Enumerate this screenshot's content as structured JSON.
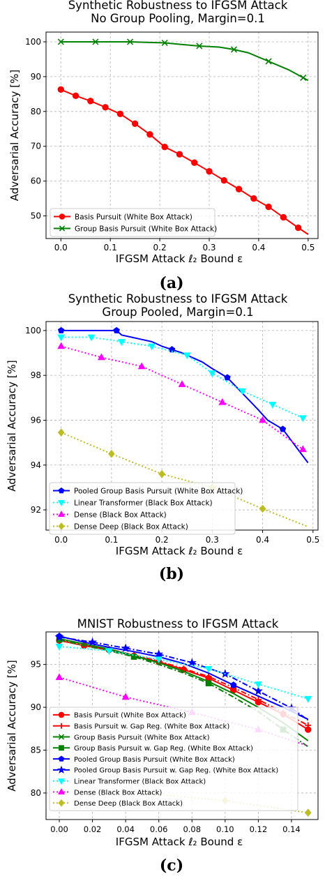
{
  "panels": [
    {
      "caption": "(a)"
    },
    {
      "caption": "(b)"
    },
    {
      "caption": "(c)"
    }
  ],
  "chart_data": [
    {
      "type": "line",
      "title": "Synthetic Robustness to IFGSM Attack",
      "subtitle": "No Group Pooling, Margin=0.1",
      "xlabel": "IFGSM Attack ℓ₂ Bound ε",
      "ylabel": "Adversarial Accuracy [%]",
      "xlim": [
        -0.03,
        0.52
      ],
      "ylim": [
        43.5,
        102.8
      ],
      "xticks": [
        0.0,
        0.1,
        0.2,
        0.3,
        0.4,
        0.5
      ],
      "xticklabels": [
        "0.0",
        "0.1",
        "0.2",
        "0.3",
        "0.4",
        "0.5"
      ],
      "yticks": [
        50,
        60,
        70,
        80,
        90,
        100
      ],
      "yticklabels": [
        "50",
        "60",
        "70",
        "80",
        "90",
        "100"
      ],
      "grid": true,
      "legend_position": "lower-left",
      "series": [
        {
          "name": "Basis Pursuit (White Box Attack)",
          "color": "#ff0000",
          "marker": "circle",
          "linestyle": "solid",
          "x": [
            0.0,
            0.03,
            0.06,
            0.09,
            0.12,
            0.15,
            0.18,
            0.21,
            0.24,
            0.27,
            0.3,
            0.33,
            0.36,
            0.39,
            0.42,
            0.45,
            0.48,
            0.5
          ],
          "y": [
            86.3,
            84.5,
            83.0,
            81.2,
            79.3,
            76.5,
            73.4,
            69.8,
            67.7,
            65.3,
            62.8,
            60.2,
            57.7,
            55.0,
            52.6,
            49.6,
            46.6,
            44.7
          ],
          "markers": [
            true,
            true,
            true,
            true,
            true,
            true,
            true,
            true,
            true,
            true,
            true,
            true,
            true,
            true,
            true,
            true,
            true,
            false
          ]
        },
        {
          "name": "Group Basis Pursuit (White Box Attack)",
          "color": "#008000",
          "marker": "x",
          "linestyle": "solid",
          "x": [
            0.0,
            0.07,
            0.14,
            0.21,
            0.24,
            0.28,
            0.32,
            0.35,
            0.38,
            0.42,
            0.46,
            0.49,
            0.5
          ],
          "y": [
            100.0,
            100.0,
            100.0,
            99.7,
            99.3,
            98.8,
            98.5,
            97.8,
            96.8,
            94.4,
            92.0,
            89.7,
            88.9
          ],
          "markers": [
            true,
            true,
            true,
            true,
            false,
            true,
            false,
            true,
            false,
            true,
            false,
            true,
            false
          ]
        }
      ]
    },
    {
      "type": "line",
      "title": "Synthetic Robustness to IFGSM Attack",
      "subtitle": "Group Pooled, Margin=0.1",
      "xlabel": "IFGSM Attack ℓ₂ Bound ε",
      "ylabel": "Adversarial Accuracy [%]",
      "xlim": [
        -0.03,
        0.51
      ],
      "ylim": [
        91.1,
        100.4
      ],
      "xticks": [
        0.0,
        0.1,
        0.2,
        0.3,
        0.4,
        0.5
      ],
      "xticklabels": [
        "0.0",
        "0.1",
        "0.2",
        "0.3",
        "0.4",
        "0.5"
      ],
      "yticks": [
        92,
        94,
        96,
        98,
        100
      ],
      "yticklabels": [
        "92",
        "94",
        "96",
        "98",
        "100"
      ],
      "grid": true,
      "legend_position": "lower-left",
      "series": [
        {
          "name": "Pooled Group Basis Pursuit (White Box Attack)",
          "color": "#0000ff",
          "marker": "pentagon",
          "linestyle": "solid",
          "x": [
            0.0,
            0.11,
            0.12,
            0.14,
            0.16,
            0.18,
            0.2,
            0.22,
            0.24,
            0.26,
            0.28,
            0.3,
            0.33,
            0.36,
            0.39,
            0.41,
            0.44,
            0.49
          ],
          "y": [
            100.0,
            100.0,
            99.8,
            99.7,
            99.6,
            99.5,
            99.3,
            99.15,
            99.0,
            98.8,
            98.6,
            98.3,
            97.9,
            97.2,
            96.5,
            96.0,
            95.6,
            94.1
          ],
          "markers": [
            true,
            true,
            false,
            false,
            false,
            false,
            false,
            true,
            false,
            false,
            false,
            false,
            true,
            false,
            false,
            false,
            true,
            false
          ]
        },
        {
          "name": "Linear Transformer (Black Box Attack)",
          "color": "#00ffff",
          "marker": "triangle-down",
          "linestyle": "dotted",
          "x": [
            0.0,
            0.06,
            0.12,
            0.18,
            0.25,
            0.3,
            0.36,
            0.42,
            0.48
          ],
          "y": [
            99.7,
            99.7,
            99.5,
            99.3,
            98.9,
            98.1,
            97.3,
            96.7,
            96.1
          ],
          "markers": [
            true,
            true,
            true,
            true,
            true,
            true,
            true,
            true,
            true
          ]
        },
        {
          "name": "Dense (Black Box Attack)",
          "color": "#ff00ff",
          "marker": "triangle-up",
          "linestyle": "dotted",
          "x": [
            0.0,
            0.08,
            0.16,
            0.24,
            0.32,
            0.4,
            0.48
          ],
          "y": [
            99.3,
            98.8,
            98.4,
            97.6,
            96.8,
            96.0,
            94.7
          ],
          "markers": [
            true,
            true,
            true,
            true,
            true,
            true,
            true
          ]
        },
        {
          "name": "Dense Deep (Black Box Attack)",
          "color": "#bcbd22",
          "marker": "diamond",
          "linestyle": "dotted",
          "x": [
            0.0,
            0.1,
            0.2,
            0.3,
            0.4,
            0.49
          ],
          "y": [
            95.45,
            94.5,
            93.6,
            93.0,
            92.05,
            91.25
          ],
          "markers": [
            true,
            true,
            true,
            true,
            true,
            false
          ]
        }
      ]
    },
    {
      "type": "line",
      "title": "MNIST Robustness to IFGSM Attack",
      "xlabel": "IFGSM Attack ℓ₂ Bound ε",
      "ylabel": "Adversarial Accuracy [%]",
      "xlim": [
        -0.008,
        0.156
      ],
      "ylim": [
        76.9,
        98.8
      ],
      "xticks": [
        0.0,
        0.02,
        0.04,
        0.06,
        0.08,
        0.1,
        0.12,
        0.14
      ],
      "xticklabels": [
        "0.00",
        "0.02",
        "0.04",
        "0.06",
        "0.08",
        "0.10",
        "0.12",
        "0.14"
      ],
      "yticks": [
        80,
        85,
        90,
        95
      ],
      "yticklabels": [
        "80",
        "85",
        "90",
        "95"
      ],
      "grid": true,
      "legend_position": "lower-left",
      "series": [
        {
          "name": "Basis Pursuit (White Box Attack)",
          "color": "#ff0000",
          "marker": "circle",
          "linestyle": "solid",
          "x": [
            0.0,
            0.015,
            0.03,
            0.045,
            0.06,
            0.075,
            0.09,
            0.105,
            0.12,
            0.135,
            0.15
          ],
          "y": [
            97.8,
            97.2,
            96.7,
            96.0,
            95.3,
            94.4,
            93.4,
            92.0,
            90.6,
            89.2,
            87.4
          ],
          "markers": [
            true,
            true,
            true,
            true,
            true,
            true,
            true,
            true,
            true,
            true,
            true
          ]
        },
        {
          "name": "Basis Pursuit w. Gap Reg. (White Box Attack)",
          "color": "#ff0000",
          "marker": "plus",
          "linestyle": "dashdot",
          "x": [
            0.0,
            0.015,
            0.03,
            0.045,
            0.06,
            0.075,
            0.09,
            0.105,
            0.12,
            0.135,
            0.15
          ],
          "y": [
            97.9,
            97.3,
            96.8,
            96.1,
            95.4,
            94.5,
            93.6,
            92.3,
            90.9,
            89.4,
            87.9
          ],
          "markers": [
            true,
            true,
            true,
            true,
            true,
            true,
            true,
            true,
            true,
            true,
            true
          ]
        },
        {
          "name": "Group Basis Pursuit (White Box Attack)",
          "color": "#008000",
          "marker": "x",
          "linestyle": "solid",
          "x": [
            0.0,
            0.015,
            0.03,
            0.045,
            0.06,
            0.075,
            0.09,
            0.105,
            0.12,
            0.135,
            0.15
          ],
          "y": [
            98.0,
            97.4,
            96.8,
            96.0,
            95.2,
            94.2,
            93.0,
            91.6,
            90.0,
            88.2,
            86.1
          ],
          "markers": [
            false,
            false,
            false,
            false,
            false,
            false,
            false,
            false,
            false,
            false,
            false
          ]
        },
        {
          "name": "Group Basis Pursuit w. Gap Reg. (White Box Attack)",
          "color": "#008000",
          "marker": "square",
          "linestyle": "dashdot",
          "x": [
            0.0,
            0.015,
            0.03,
            0.045,
            0.06,
            0.075,
            0.09,
            0.105,
            0.12,
            0.135,
            0.15
          ],
          "y": [
            97.9,
            97.2,
            96.6,
            95.9,
            95.0,
            94.0,
            92.8,
            91.2,
            89.5,
            87.4,
            85.4
          ],
          "markers": [
            true,
            false,
            false,
            true,
            false,
            false,
            true,
            false,
            false,
            true,
            false
          ]
        },
        {
          "name": "Pooled Group Basis Pursuit (White Box Attack)",
          "color": "#0000ff",
          "marker": "pentagon",
          "linestyle": "solid",
          "x": [
            0.0,
            0.015,
            0.03,
            0.045,
            0.06,
            0.075,
            0.09,
            0.105,
            0.12,
            0.135,
            0.15
          ],
          "y": [
            98.3,
            97.6,
            97.0,
            96.5,
            95.9,
            95.1,
            94.0,
            92.6,
            91.3,
            90.0,
            88.6
          ],
          "markers": [
            true,
            false,
            false,
            false,
            true,
            false,
            false,
            true,
            false,
            false,
            false
          ]
        },
        {
          "name": "Pooled Group Basis Pursuit w. Gap Reg. (White Box Attack)",
          "color": "#0000ff",
          "marker": "star",
          "linestyle": "dashdot",
          "x": [
            0.0,
            0.02,
            0.04,
            0.06,
            0.08,
            0.1,
            0.12,
            0.14,
            0.15
          ],
          "y": [
            98.2,
            97.6,
            96.9,
            96.2,
            95.2,
            93.9,
            91.9,
            89.9,
            88.5
          ],
          "markers": [
            true,
            true,
            true,
            true,
            true,
            true,
            true,
            true,
            false
          ]
        },
        {
          "name": "Linear Transformer (Black Box Attack)",
          "color": "#00ffff",
          "marker": "triangle-down",
          "linestyle": "dotted",
          "x": [
            0.0,
            0.03,
            0.06,
            0.09,
            0.12,
            0.15
          ],
          "y": [
            97.1,
            96.6,
            95.6,
            94.5,
            92.7,
            91.0
          ],
          "markers": [
            true,
            true,
            true,
            true,
            true,
            true
          ]
        },
        {
          "name": "Dense (Black Box Attack)",
          "color": "#ff00ff",
          "marker": "triangle-up",
          "linestyle": "dotted",
          "x": [
            0.0,
            0.04,
            0.08,
            0.12,
            0.15
          ],
          "y": [
            93.5,
            91.2,
            89.4,
            87.4,
            85.5
          ],
          "markers": [
            true,
            true,
            true,
            true,
            false
          ]
        },
        {
          "name": "Dense Deep (Black Box Attack)",
          "color": "#bcbd22",
          "marker": "diamond",
          "linestyle": "dotted",
          "x": [
            0.05,
            0.1,
            0.15
          ],
          "y": [
            80.0,
            79.1,
            77.7
          ],
          "markers": [
            false,
            true,
            true
          ]
        }
      ]
    }
  ]
}
